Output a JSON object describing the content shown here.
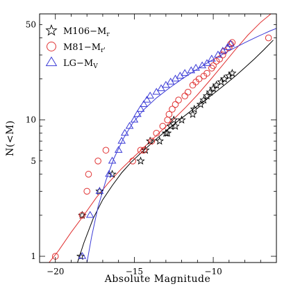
{
  "chart_data": {
    "type": "scatter",
    "xlabel": "Absolute Magnitude",
    "ylabel": "N(<M)",
    "xlim": [
      -21,
      -6
    ],
    "ylim": [
      0.9,
      60
    ],
    "y_scale": "log",
    "x_ticks": [
      -20,
      -15,
      -10
    ],
    "x_tick_labels": [
      "−20",
      "−15",
      "−10"
    ],
    "y_ticks": [
      1,
      5,
      10,
      50
    ],
    "y_tick_labels": [
      "1",
      "5",
      "10",
      "50"
    ],
    "legend_position": "top-left",
    "series": [
      {
        "name": "M106−M",
        "name_sub": "r",
        "marker": "star",
        "color": "#000000",
        "x": [
          -18.4,
          -18.3,
          -17.2,
          -16.4,
          -14.6,
          -14.3,
          -14.0,
          -13.4,
          -13.0,
          -12.9,
          -12.7,
          -12.5,
          -12.4,
          -12.0,
          -11.3,
          -11.2,
          -10.8,
          -10.6,
          -10.4,
          -10.2,
          -10.0,
          -9.8,
          -9.5,
          -9.3,
          -9.0,
          -8.8
        ],
        "y": [
          1,
          2,
          3,
          4,
          5,
          6,
          7,
          7,
          8,
          8,
          9,
          10,
          9,
          10,
          11,
          12,
          13,
          14,
          15,
          16,
          17,
          18,
          19,
          20,
          21,
          22
        ]
      },
      {
        "name": "M81−M",
        "name_sub": "r'",
        "marker": "circle",
        "color": "#e03030",
        "x": [
          -20.0,
          -18.3,
          -18.0,
          -17.9,
          -17.3,
          -16.8,
          -15.1,
          -14.6,
          -14.4,
          -13.9,
          -13.6,
          -13.2,
          -12.9,
          -12.8,
          -12.6,
          -12.4,
          -12.2,
          -11.8,
          -11.6,
          -11.3,
          -11.1,
          -10.9,
          -10.6,
          -10.4,
          -10.1,
          -10.0,
          -9.8,
          -9.6,
          -9.4,
          -9.3,
          -9.0,
          -8.9,
          -8.8,
          -6.5
        ],
        "y": [
          1,
          2,
          3,
          4,
          5,
          6,
          5,
          6,
          6,
          7,
          8,
          9,
          10,
          11,
          12,
          13,
          14,
          15,
          16,
          18,
          19,
          20,
          21,
          22,
          24,
          25,
          27,
          28,
          30,
          32,
          34,
          36,
          37,
          40
        ]
      },
      {
        "name": "LG−M",
        "name_sub": "V",
        "marker": "triangle",
        "color": "#3b3bd6",
        "x": [
          -18.3,
          -17.8,
          -17.2,
          -16.6,
          -16.4,
          -16.0,
          -15.8,
          -15.6,
          -15.3,
          -15.0,
          -14.8,
          -14.6,
          -14.4,
          -14.2,
          -14.0,
          -13.6,
          -13.3,
          -13.0,
          -12.7,
          -12.4,
          -12.1,
          -11.8,
          -11.4,
          -11.1,
          -10.7,
          -10.4,
          -10.1,
          -9.7,
          -9.4,
          -9.1,
          -8.9
        ],
        "y": [
          1,
          2,
          3,
          4,
          5,
          6,
          7,
          8,
          9,
          10,
          11,
          12,
          13,
          14,
          15,
          16,
          17,
          18,
          19,
          20,
          21,
          22,
          23,
          24,
          25,
          26,
          28,
          30,
          32,
          34,
          36
        ]
      }
    ],
    "fits": [
      {
        "color": "#000000",
        "x": [
          -18.6,
          -18.2,
          -17.6,
          -17.0,
          -16.4,
          -15.8,
          -15.2,
          -14.6,
          -14.0,
          -13.4,
          -12.8,
          -12.2,
          -11.6,
          -11.0,
          -10.4,
          -9.8,
          -9.2,
          -8.6,
          -8.0,
          -7.4,
          -6.8,
          -6.2
        ],
        "y": [
          0.9,
          1.25,
          1.9,
          2.6,
          3.3,
          4.1,
          4.9,
          5.7,
          6.6,
          7.6,
          8.7,
          9.9,
          11.2,
          12.7,
          14.3,
          16.2,
          18.4,
          21.0,
          24.2,
          28.0,
          32.7,
          38.5
        ]
      },
      {
        "color": "#e03030",
        "x": [
          -20.4,
          -19.8,
          -19.0,
          -18.2,
          -17.4,
          -16.6,
          -15.8,
          -15.0,
          -14.2,
          -13.4,
          -12.6,
          -11.8,
          -11.0,
          -10.2,
          -9.4,
          -8.6,
          -7.8,
          -7.0,
          -6.2
        ],
        "y": [
          0.9,
          1.1,
          1.5,
          2.0,
          2.7,
          3.5,
          4.4,
          5.4,
          6.6,
          8.1,
          9.9,
          12.2,
          15.3,
          19.6,
          25.3,
          32.8,
          42.0,
          52.0,
          62.0
        ]
      },
      {
        "color": "#3b3bd6",
        "x": [
          -18.0,
          -17.7,
          -17.3,
          -16.8,
          -16.3,
          -15.7,
          -15.1,
          -14.4,
          -13.6,
          -12.8,
          -12.0,
          -11.2,
          -10.4,
          -9.6,
          -8.8,
          -8.0,
          -7.2,
          -6.4,
          -6.0
        ],
        "y": [
          0.9,
          1.4,
          2.3,
          3.6,
          5.2,
          7.3,
          9.5,
          11.9,
          14.5,
          17.1,
          19.9,
          22.9,
          26.1,
          29.5,
          33.1,
          36.9,
          40.9,
          45.0,
          47.0
        ]
      }
    ]
  }
}
